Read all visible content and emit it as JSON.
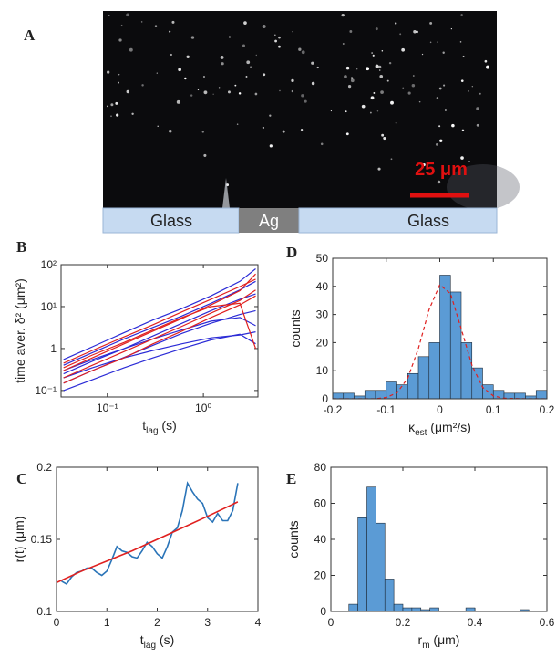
{
  "panel_a": {
    "label": "A",
    "scale_bar": "25 μm",
    "regions": [
      "Glass",
      "Ag",
      "Glass"
    ]
  },
  "chart_data": [
    {
      "type": "line",
      "panel": "B",
      "xlog": true,
      "ylog": true,
      "ylabel": "time aver. δ² (μm²)",
      "xlabel": {
        "text": "t",
        "sub": "lag",
        "unit": " (s)"
      },
      "xlim": [
        0.033,
        3.7
      ],
      "ylim": [
        0.07,
        100
      ],
      "xticks": [
        {
          "value": 0.1,
          "label": "10⁻¹"
        },
        {
          "value": 1,
          "label": "10⁰"
        }
      ],
      "yticks": [
        {
          "value": 0.1,
          "label": "10⁻¹"
        },
        1,
        {
          "value": 10,
          "label": "10¹"
        },
        {
          "value": 100,
          "label": "10²"
        }
      ],
      "x": [
        0.035,
        0.07,
        0.15,
        0.3,
        0.6,
        1.2,
        2.4,
        3.5
      ],
      "series": [
        {
          "color": "#2b2bd6",
          "values": [
            0.1,
            0.18,
            0.35,
            0.6,
            1.0,
            1.6,
            2.2,
            1.3
          ]
        },
        {
          "color": "#2b2bd6",
          "values": [
            0.15,
            0.3,
            0.62,
            1.2,
            2.3,
            4.0,
            6.5,
            8
          ]
        },
        {
          "color": "#2b2bd6",
          "values": [
            0.25,
            0.5,
            1.0,
            2.0,
            4.0,
            8,
            15,
            20
          ]
        },
        {
          "color": "#2b2bd6",
          "values": [
            0.4,
            0.8,
            1.7,
            3.2,
            6,
            12,
            25,
            40
          ]
        },
        {
          "color": "#2b2bd6",
          "values": [
            0.2,
            0.35,
            0.6,
            0.9,
            1.3,
            1.8,
            2.1,
            2.5
          ]
        },
        {
          "color": "#2b2bd6",
          "values": [
            0.55,
            1.1,
            2.4,
            4.8,
            9,
            18,
            40,
            80
          ]
        },
        {
          "color": "#2b2bd6",
          "values": [
            0.3,
            0.55,
            1.0,
            1.7,
            2.8,
            4.5,
            5.5,
            3.5
          ]
        },
        {
          "color": "#e0201f",
          "values": [
            0.2,
            0.4,
            0.85,
            1.7,
            3.4,
            7,
            14,
            25
          ]
        },
        {
          "color": "#e0201f",
          "values": [
            0.3,
            0.6,
            1.3,
            2.6,
            5.2,
            11,
            24,
            60
          ]
        },
        {
          "color": "#e0201f",
          "values": [
            0.35,
            0.7,
            1.4,
            2.8,
            5.5,
            10,
            12,
            1.0
          ]
        },
        {
          "color": "#e0201f",
          "values": [
            0.15,
            0.3,
            0.6,
            1.3,
            2.6,
            5.5,
            11,
            18
          ]
        },
        {
          "color": "#e0201f",
          "values": [
            0.45,
            0.9,
            1.9,
            3.7,
            7.5,
            15,
            30,
            45
          ]
        }
      ]
    },
    {
      "type": "histogram",
      "panel": "D",
      "ylabel": "counts",
      "xlabel": {
        "text": "κ",
        "sub": "est",
        "unit": " (μm²/s)"
      },
      "xlim": [
        -0.2,
        0.2
      ],
      "ylim": [
        0,
        50
      ],
      "xticks": [
        -0.2,
        -0.1,
        0,
        0.1,
        0.2
      ],
      "yticks": [
        0,
        10,
        20,
        30,
        40,
        50
      ],
      "color": "#5b9bd5",
      "bins": [
        -0.2,
        -0.18,
        -0.16,
        -0.14,
        -0.12,
        -0.1,
        -0.08,
        -0.06,
        -0.04,
        -0.02,
        0,
        0.02,
        0.04,
        0.06,
        0.08,
        0.1,
        0.12,
        0.14,
        0.16,
        0.18,
        0.2
      ],
      "counts": [
        2,
        2,
        1,
        3,
        3,
        6,
        5,
        9,
        15,
        20,
        44,
        38,
        20,
        11,
        5,
        3,
        2,
        2,
        1,
        3
      ],
      "fit": {
        "color": "#e0201f",
        "dashed": true,
        "x": [
          -0.2,
          -0.16,
          -0.12,
          -0.1,
          -0.08,
          -0.06,
          -0.04,
          -0.02,
          0,
          0.02,
          0.04,
          0.06,
          0.08,
          0.1,
          0.12,
          0.16,
          0.2
        ],
        "values": [
          0,
          0,
          0,
          0.5,
          2.1,
          7.3,
          17.9,
          31.8,
          40.6,
          37.4,
          24.9,
          11.9,
          4.1,
          1.0,
          0.2,
          0,
          0
        ]
      }
    },
    {
      "type": "line",
      "panel": "C",
      "ylabel": "r(t) (μm)",
      "xlabel": {
        "text": "t",
        "sub": "lag",
        "unit": " (s)"
      },
      "xlim": [
        0,
        4
      ],
      "ylim": [
        0.1,
        0.2
      ],
      "xticks": [
        0,
        1,
        2,
        3,
        4
      ],
      "yticks": [
        0.1,
        0.15,
        0.2
      ],
      "series": [
        {
          "color": "#2a74b8",
          "x": [
            0.1,
            0.2,
            0.3,
            0.4,
            0.5,
            0.6,
            0.7,
            0.8,
            0.9,
            1.0,
            1.1,
            1.2,
            1.3,
            1.4,
            1.5,
            1.6,
            1.7,
            1.8,
            1.9,
            2.0,
            2.1,
            2.2,
            2.3,
            2.4,
            2.5,
            2.6,
            2.7,
            2.8,
            2.9,
            3.0,
            3.1,
            3.2,
            3.3,
            3.4,
            3.5,
            3.6
          ],
          "values": [
            0.121,
            0.119,
            0.124,
            0.127,
            0.128,
            0.13,
            0.13,
            0.127,
            0.125,
            0.128,
            0.136,
            0.145,
            0.142,
            0.141,
            0.138,
            0.137,
            0.142,
            0.148,
            0.145,
            0.14,
            0.137,
            0.145,
            0.155,
            0.158,
            0.17,
            0.189,
            0.183,
            0.178,
            0.175,
            0.165,
            0.162,
            0.168,
            0.163,
            0.163,
            0.17,
            0.189
          ]
        },
        {
          "color": "#e0201f",
          "x": [
            0,
            0.5,
            1,
            1.5,
            2,
            2.5,
            3,
            3.6
          ],
          "values": [
            0.12,
            0.128,
            0.135,
            0.142,
            0.15,
            0.158,
            0.166,
            0.176
          ]
        }
      ]
    },
    {
      "type": "histogram",
      "panel": "E",
      "ylabel": "counts",
      "xlabel": {
        "text": "r",
        "sub": "m",
        "unit": " (μm)"
      },
      "xlim": [
        0,
        0.6
      ],
      "ylim": [
        0,
        80
      ],
      "xticks": [
        0,
        0.2,
        0.4,
        0.6
      ],
      "yticks": [
        0,
        20,
        40,
        60,
        80
      ],
      "color": "#5b9bd5",
      "bins": [
        0.05,
        0.075,
        0.1,
        0.125,
        0.15,
        0.175,
        0.2,
        0.225,
        0.25,
        0.275,
        0.3,
        0.325,
        0.35,
        0.375,
        0.4,
        0.425,
        0.45,
        0.475,
        0.5,
        0.525,
        0.55
      ],
      "counts": [
        4,
        52,
        69,
        49,
        18,
        4,
        2,
        2,
        1,
        2,
        0,
        0,
        0,
        2,
        0,
        0,
        0,
        0,
        0,
        1
      ]
    }
  ]
}
